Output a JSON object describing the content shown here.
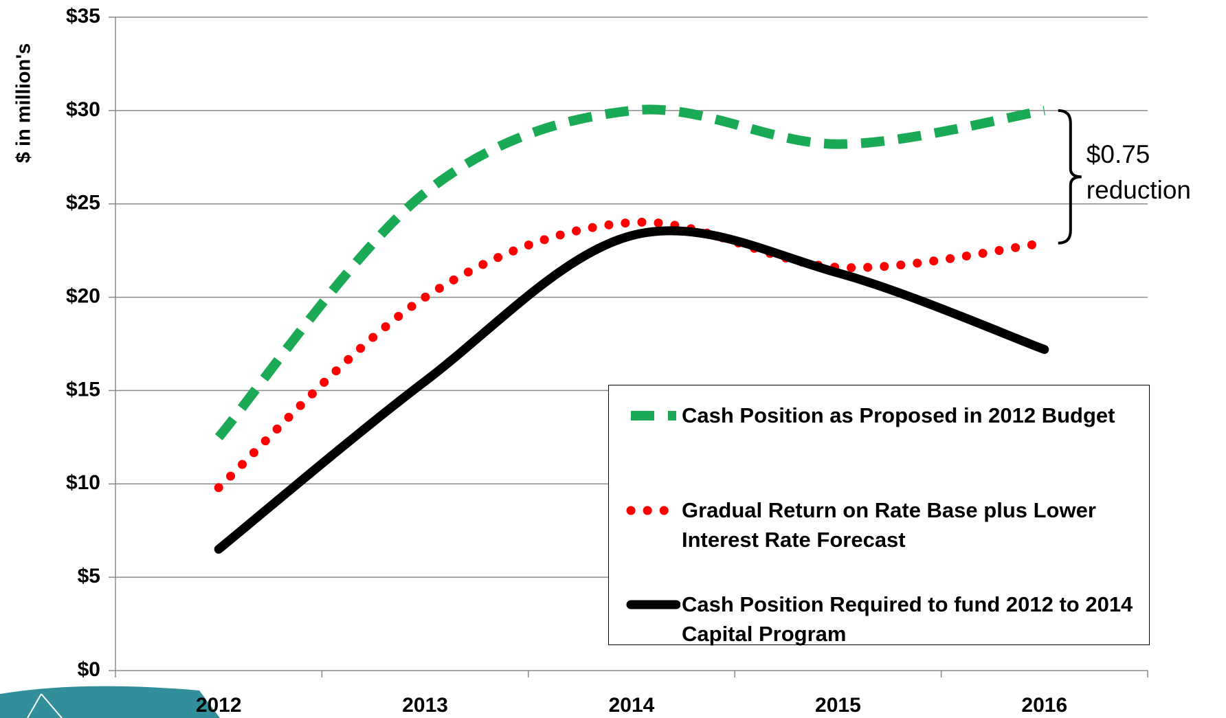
{
  "chart_data": {
    "type": "line",
    "y_label": "$ in million's",
    "categories": [
      "2012",
      "2013",
      "2014",
      "2015",
      "2016"
    ],
    "series": [
      {
        "name": "Cash Position as Proposed in 2012 Budget",
        "color": "#1aaa55",
        "style": "dashed",
        "values": [
          12.5,
          25.6,
          30.0,
          28.2,
          30.0
        ]
      },
      {
        "name": "Gradual Return on Rate Base plus Lower Interest Rate Forecast",
        "color": "#ff0000",
        "style": "dotted",
        "values": [
          9.8,
          20.0,
          24.0,
          21.6,
          22.9
        ]
      },
      {
        "name": "Cash Position Required to fund 2012 to 2014 Capital Program",
        "color": "#000000",
        "style": "solid",
        "values": [
          6.5,
          15.5,
          23.3,
          21.3,
          17.2
        ]
      }
    ],
    "ylim": [
      0,
      35
    ],
    "yticks": [
      {
        "value": 0,
        "label": "$0"
      },
      {
        "value": 5,
        "label": "$5"
      },
      {
        "value": 10,
        "label": "$10"
      },
      {
        "value": 15,
        "label": "$15"
      },
      {
        "value": 20,
        "label": "$20"
      },
      {
        "value": 25,
        "label": "$25"
      },
      {
        "value": 30,
        "label": "$30"
      },
      {
        "value": 35,
        "label": "$35"
      }
    ],
    "grid": true,
    "legend": "lower right",
    "annotation": [
      "$0.75",
      "reduction"
    ]
  }
}
